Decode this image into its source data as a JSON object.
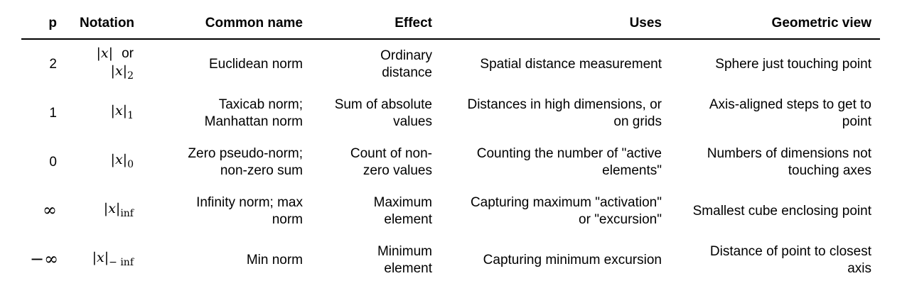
{
  "headers": {
    "p": "p",
    "notation": "Notation",
    "common_name": "Common name",
    "effect": "Effect",
    "uses": "Uses",
    "geometric_view": "Geometric view"
  },
  "rows": [
    {
      "p": "2",
      "notation_var": "x",
      "notation_or": "or",
      "notation_sub": "2",
      "common_name": "Euclidean norm",
      "effect_1": "Ordinary",
      "effect_2": "distance",
      "uses_1": "Spatial distance measurement",
      "uses_2": "",
      "geo_1": "Sphere just touching point",
      "geo_2": ""
    },
    {
      "p": "1",
      "notation_var": "x",
      "notation_sub": "1",
      "common_name_1": "Taxicab norm;",
      "common_name_2": "Manhattan norm",
      "effect_1": "Sum of absolute",
      "effect_2": "values",
      "uses_1": "Distances in high dimensions, or",
      "uses_2": "on grids",
      "geo_1": "Axis-aligned steps to get to",
      "geo_2": "point"
    },
    {
      "p": "0",
      "notation_var": "x",
      "notation_sub": "0",
      "common_name_1": "Zero pseudo-norm;",
      "common_name_2": "non-zero sum",
      "effect_1": "Count of non-",
      "effect_2": "zero values",
      "uses_1": "Counting the number of \"active",
      "uses_2": "elements\"",
      "geo_1": "Numbers of dimensions not",
      "geo_2": "touching axes"
    },
    {
      "p": "∞",
      "notation_var": "x",
      "notation_sub": "inf",
      "common_name_1": "Infinity norm; max",
      "common_name_2": "norm",
      "effect_1": "Maximum",
      "effect_2": "element",
      "uses_1": "Capturing maximum \"activation\"",
      "uses_2": "or \"excursion\"",
      "geo_1": "Smallest cube enclosing point",
      "geo_2": ""
    },
    {
      "p": "−∞",
      "notation_var": "x",
      "notation_sub": "− inf",
      "common_name": "Min norm",
      "effect_1": "Minimum",
      "effect_2": "element",
      "uses_1": "Capturing minimum excursion",
      "uses_2": "",
      "geo_1": "Distance of point to closest",
      "geo_2": "axis"
    }
  ]
}
